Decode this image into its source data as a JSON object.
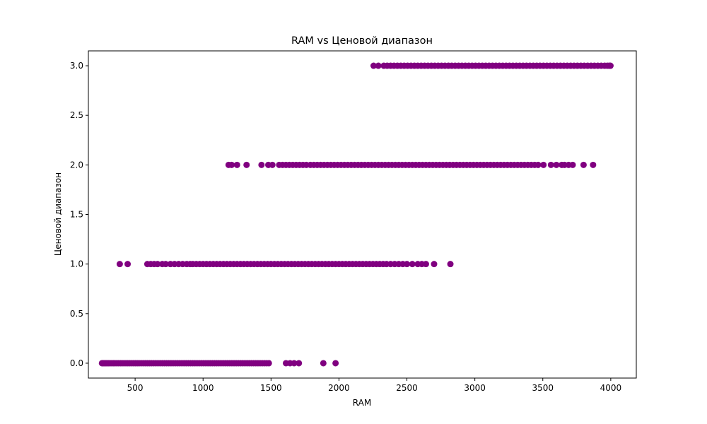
{
  "chart_data": {
    "type": "scatter",
    "title": "RAM vs Ценовой диапазон",
    "xlabel": "RAM",
    "ylabel": "Ценовой диапазон",
    "xlim": [
      156,
      4188
    ],
    "ylim": [
      -0.15,
      3.15
    ],
    "xticks": [
      500,
      1000,
      1500,
      2000,
      2500,
      3000,
      3500,
      4000
    ],
    "yticks": [
      0.0,
      0.5,
      1.0,
      1.5,
      2.0,
      2.5,
      3.0
    ],
    "xtick_labels": [
      "500",
      "1000",
      "1500",
      "2000",
      "2500",
      "3000",
      "3500",
      "4000"
    ],
    "ytick_labels": [
      "0.0",
      "0.5",
      "1.0",
      "1.5",
      "2.0",
      "2.5",
      "3.0"
    ],
    "grid": false,
    "marker_color": "#800080",
    "series": [
      {
        "y": 0,
        "x": [
          256,
          262,
          270,
          278,
          286,
          295,
          305,
          316,
          328,
          340,
          352,
          365,
          378,
          392,
          405,
          418,
          432,
          446,
          460,
          474,
          488,
          502,
          516,
          530,
          545,
          560,
          575,
          590,
          605,
          620,
          636,
          652,
          668,
          684,
          700,
          716,
          732,
          748,
          764,
          780,
          796,
          812,
          828,
          844,
          860,
          876,
          892,
          908,
          924,
          940,
          956,
          972,
          988,
          1004,
          1020,
          1036,
          1052,
          1068,
          1084,
          1100,
          1116,
          1132,
          1148,
          1164,
          1180,
          1196,
          1212,
          1228,
          1244,
          1260,
          1276,
          1292,
          1308,
          1324,
          1340,
          1356,
          1372,
          1388,
          1404,
          1420,
          1436,
          1452,
          1468,
          1484,
          1610,
          1640,
          1670,
          1705,
          1885,
          1975
        ]
      },
      {
        "y": 1,
        "x": [
          387,
          445,
          590,
          615,
          640,
          665,
          700,
          725,
          760,
          790,
          820,
          850,
          880,
          905,
          925,
          950,
          975,
          1000,
          1025,
          1050,
          1075,
          1100,
          1125,
          1150,
          1175,
          1200,
          1225,
          1250,
          1275,
          1300,
          1325,
          1350,
          1375,
          1400,
          1425,
          1450,
          1475,
          1500,
          1525,
          1550,
          1575,
          1600,
          1625,
          1650,
          1675,
          1700,
          1725,
          1750,
          1775,
          1800,
          1825,
          1850,
          1875,
          1900,
          1925,
          1950,
          1975,
          2000,
          2025,
          2050,
          2075,
          2100,
          2125,
          2150,
          2175,
          2200,
          2225,
          2250,
          2275,
          2300,
          2325,
          2350,
          2380,
          2410,
          2440,
          2470,
          2500,
          2540,
          2580,
          2610,
          2640,
          2700,
          2820
        ]
      },
      {
        "y": 2,
        "x": [
          1188,
          1210,
          1250,
          1320,
          1430,
          1480,
          1510,
          1560,
          1585,
          1610,
          1635,
          1660,
          1685,
          1710,
          1735,
          1760,
          1790,
          1815,
          1840,
          1865,
          1890,
          1915,
          1940,
          1965,
          1990,
          2015,
          2040,
          2065,
          2090,
          2115,
          2140,
          2165,
          2190,
          2215,
          2240,
          2265,
          2290,
          2315,
          2340,
          2365,
          2390,
          2415,
          2440,
          2465,
          2490,
          2515,
          2540,
          2565,
          2590,
          2615,
          2640,
          2665,
          2690,
          2715,
          2740,
          2765,
          2790,
          2815,
          2840,
          2865,
          2890,
          2915,
          2940,
          2965,
          2990,
          3015,
          3040,
          3065,
          3090,
          3115,
          3140,
          3165,
          3190,
          3215,
          3240,
          3265,
          3290,
          3315,
          3340,
          3365,
          3390,
          3415,
          3440,
          3465,
          3505,
          3560,
          3600,
          3640,
          3660,
          3690,
          3720,
          3800,
          3870
        ]
      },
      {
        "y": 3,
        "x": [
          2255,
          2290,
          2330,
          2355,
          2380,
          2405,
          2430,
          2455,
          2480,
          2505,
          2530,
          2555,
          2580,
          2605,
          2630,
          2655,
          2680,
          2705,
          2730,
          2755,
          2780,
          2805,
          2830,
          2855,
          2880,
          2905,
          2930,
          2955,
          2980,
          3005,
          3030,
          3055,
          3080,
          3105,
          3130,
          3155,
          3180,
          3205,
          3230,
          3255,
          3280,
          3305,
          3330,
          3355,
          3380,
          3405,
          3430,
          3455,
          3480,
          3505,
          3530,
          3555,
          3580,
          3605,
          3630,
          3655,
          3680,
          3705,
          3730,
          3755,
          3780,
          3805,
          3830,
          3855,
          3880,
          3905,
          3930,
          3955,
          3975,
          3990,
          3998
        ]
      }
    ]
  }
}
